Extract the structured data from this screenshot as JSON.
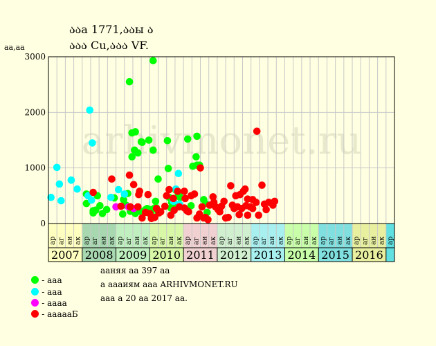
{
  "title_line1": "ააа 1771,ააы ა",
  "title_line2": "ააა Cu,ააა VF.",
  "unit_label": "аа,аа",
  "watermark": "arhivmonet.ru",
  "legend": [
    {
      "label": "- ааа",
      "color": "#00ff00"
    },
    {
      "label": "- ааа",
      "color": "#00ffff"
    },
    {
      "label": "- аааа",
      "color": "#ff00ff"
    },
    {
      "label": "- аааааБ",
      "color": "#ff0000"
    }
  ],
  "info": [
    "ааняя аа 397 аа",
    "а аааиям ааа ARHIVMONET.RU",
    "ааа а 20 аа 2017 аа."
  ],
  "chart_data": {
    "type": "scatter",
    "ylim": [
      0,
      3000
    ],
    "yticks": [
      0,
      1000,
      2000,
      3000
    ],
    "grid": true,
    "years": [
      {
        "label": "2007",
        "color": "#ffffc0"
      },
      {
        "label": "2008",
        "color": "#a8d8b0"
      },
      {
        "label": "2009",
        "color": "#c0f0c0"
      },
      {
        "label": "2010",
        "color": "#d8f8a8"
      },
      {
        "label": "2011",
        "color": "#f0d0d0"
      },
      {
        "label": "2012",
        "color": "#d0f0d0"
      },
      {
        "label": "2013",
        "color": "#a8f0f0"
      },
      {
        "label": "2014",
        "color": "#c8ffa8"
      },
      {
        "label": "2015",
        "color": "#80e0e0"
      },
      {
        "label": "2016",
        "color": "#e8f0a0"
      }
    ],
    "quarter_labels": [
      "ар",
      "аг",
      "аи",
      "ак",
      "ар",
      "аг",
      "аи",
      "ак",
      "ар",
      "аг",
      "аи",
      "ак",
      "ар",
      "аг",
      "аи",
      "ак",
      "ар",
      "аг",
      "аи",
      "ак",
      "ар",
      "аг",
      "аи",
      "ак",
      "ар",
      "аг",
      "аи",
      "ак",
      "ар",
      "аг",
      "аи",
      "ак",
      "ар",
      "аг",
      "аи",
      "ак",
      "ар",
      "аг",
      "аи",
      "ак",
      "ар"
    ],
    "series": [
      {
        "color": "#00ff00",
        "points": [
          [
            4.5,
            530
          ],
          [
            4.5,
            360
          ],
          [
            5.3,
            230
          ],
          [
            5.3,
            190
          ],
          [
            5.6,
            240
          ],
          [
            5.8,
            500
          ],
          [
            6.1,
            320
          ],
          [
            6.4,
            180
          ],
          [
            6.9,
            250
          ],
          [
            7.8,
            460
          ],
          [
            8.8,
            170
          ],
          [
            8.9,
            430
          ],
          [
            9.2,
            330
          ],
          [
            9.4,
            540
          ],
          [
            9.6,
            2550
          ],
          [
            9.7,
            220
          ],
          [
            9.9,
            1630
          ],
          [
            9.9,
            1200
          ],
          [
            10.2,
            1320
          ],
          [
            10.3,
            1650
          ],
          [
            10.3,
            180
          ],
          [
            10.6,
            1270
          ],
          [
            10.9,
            220
          ],
          [
            11.0,
            1470
          ],
          [
            11.1,
            1460
          ],
          [
            11.5,
            250
          ],
          [
            11.7,
            270
          ],
          [
            11.9,
            1500
          ],
          [
            12.1,
            180
          ],
          [
            12.2,
            120
          ],
          [
            12.2,
            250
          ],
          [
            12.4,
            2930
          ],
          [
            12.4,
            1320
          ],
          [
            12.6,
            280
          ],
          [
            12.7,
            400
          ],
          [
            12.8,
            280
          ],
          [
            13.0,
            800
          ],
          [
            13.0,
            200
          ],
          [
            14.1,
            1490
          ],
          [
            14.2,
            990
          ],
          [
            14.3,
            470
          ],
          [
            14.5,
            280
          ],
          [
            14.6,
            380
          ],
          [
            14.9,
            320
          ],
          [
            15.1,
            600
          ],
          [
            15.4,
            530
          ],
          [
            15.6,
            470
          ],
          [
            16.5,
            1520
          ],
          [
            16.9,
            320
          ],
          [
            17.1,
            1030
          ],
          [
            17.5,
            1200
          ],
          [
            17.6,
            1570
          ],
          [
            17.6,
            1050
          ],
          [
            17.9,
            1050
          ],
          [
            18.4,
            430
          ],
          [
            18.6,
            360
          ],
          [
            18.8,
            200
          ]
        ]
      },
      {
        "color": "#00ffff",
        "points": [
          [
            0.3,
            470
          ],
          [
            1.0,
            1010
          ],
          [
            1.3,
            710
          ],
          [
            1.5,
            410
          ],
          [
            2.7,
            780
          ],
          [
            3.4,
            620
          ],
          [
            4.7,
            500
          ],
          [
            4.9,
            2040
          ],
          [
            5.2,
            1450
          ],
          [
            5.1,
            420
          ],
          [
            7.4,
            470
          ],
          [
            8.3,
            610
          ],
          [
            9.0,
            530
          ],
          [
            14.8,
            400
          ],
          [
            15.1,
            620
          ],
          [
            15.4,
            900
          ],
          [
            15.5,
            350
          ]
        ]
      },
      {
        "color": "#ff00ff",
        "points": [
          [
            8.0,
            300
          ],
          [
            9.5,
            300
          ],
          [
            9.6,
            300
          ],
          [
            10.1,
            270
          ]
        ]
      },
      {
        "color": "#ff0000",
        "points": [
          [
            5.3,
            560
          ],
          [
            7.5,
            800
          ],
          [
            8.6,
            310
          ],
          [
            9.6,
            870
          ],
          [
            9.7,
            300
          ],
          [
            10.1,
            700
          ],
          [
            10.6,
            300
          ],
          [
            10.7,
            520
          ],
          [
            10.8,
            580
          ],
          [
            11.1,
            100
          ],
          [
            11.5,
            200
          ],
          [
            11.8,
            520
          ],
          [
            12.0,
            180
          ],
          [
            12.2,
            90
          ],
          [
            12.6,
            110
          ],
          [
            12.8,
            270
          ],
          [
            13.1,
            190
          ],
          [
            13.3,
            210
          ],
          [
            13.8,
            310
          ],
          [
            14.0,
            500
          ],
          [
            14.3,
            610
          ],
          [
            14.5,
            150
          ],
          [
            14.8,
            450
          ],
          [
            14.9,
            240
          ],
          [
            15.3,
            580
          ],
          [
            15.5,
            300
          ],
          [
            16.1,
            580
          ],
          [
            16.1,
            280
          ],
          [
            16.2,
            450
          ],
          [
            16.4,
            230
          ],
          [
            16.6,
            210
          ],
          [
            16.9,
            500
          ],
          [
            17.3,
            530
          ],
          [
            17.6,
            100
          ],
          [
            17.9,
            170
          ],
          [
            18.0,
            1000
          ],
          [
            18.2,
            300
          ],
          [
            18.4,
            100
          ],
          [
            18.6,
            110
          ],
          [
            18.9,
            70
          ],
          [
            19.1,
            330
          ],
          [
            19.5,
            480
          ],
          [
            19.6,
            380
          ],
          [
            19.8,
            300
          ],
          [
            20.1,
            250
          ],
          [
            20.3,
            210
          ],
          [
            20.5,
            310
          ],
          [
            20.8,
            400
          ],
          [
            21.0,
            100
          ],
          [
            21.3,
            110
          ],
          [
            21.6,
            680
          ],
          [
            21.8,
            330
          ],
          [
            22.0,
            270
          ],
          [
            22.2,
            500
          ],
          [
            22.4,
            300
          ],
          [
            22.6,
            160
          ],
          [
            22.7,
            520
          ],
          [
            22.9,
            270
          ],
          [
            23.1,
            580
          ],
          [
            23.3,
            620
          ],
          [
            23.4,
            320
          ],
          [
            23.6,
            440
          ],
          [
            23.6,
            150
          ],
          [
            23.9,
            300
          ],
          [
            24.2,
            270
          ],
          [
            24.2,
            430
          ],
          [
            24.6,
            380
          ],
          [
            24.7,
            1660
          ],
          [
            24.9,
            150
          ],
          [
            25.3,
            690
          ],
          [
            25.6,
            350
          ],
          [
            25.8,
            250
          ],
          [
            26.1,
            380
          ],
          [
            26.6,
            330
          ],
          [
            26.8,
            400
          ]
        ]
      }
    ]
  }
}
